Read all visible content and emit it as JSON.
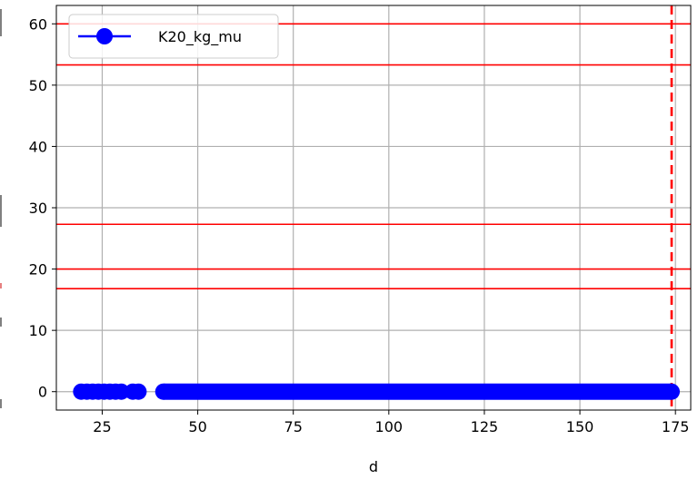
{
  "chart_data": {
    "type": "line",
    "xlabel": "d",
    "ylabel": "",
    "xlim": [
      13,
      179
    ],
    "ylim": [
      -3,
      63
    ],
    "x_ticks": [
      25,
      50,
      75,
      100,
      125,
      150,
      175
    ],
    "y_ticks": [
      0,
      10,
      20,
      30,
      40,
      50,
      60
    ],
    "grid": true,
    "legend": {
      "position": "top-left",
      "entries": [
        "K20_kg_mu"
      ]
    },
    "series": [
      {
        "name": "K20_kg_mu",
        "color": "#0000ff",
        "marker": "circle",
        "segments": [
          {
            "x": [
              19.5,
              21,
              22.5,
              24,
              25.5,
              27,
              28.5,
              30
            ],
            "y": [
              0,
              0,
              0,
              0,
              0,
              0,
              0,
              0
            ]
          },
          {
            "x": [
              33,
              34.5
            ],
            "y": [
              0,
              0
            ]
          },
          {
            "x_range": [
              41,
              174
            ],
            "y": 0
          }
        ]
      }
    ],
    "reference_lines": {
      "horizontal": [
        {
          "y": 60,
          "color": "#ff0000",
          "style": "solid"
        },
        {
          "y": 53.3,
          "color": "#ff0000",
          "style": "solid"
        },
        {
          "y": 27.3,
          "color": "#ff0000",
          "style": "solid"
        },
        {
          "y": 20,
          "color": "#ff0000",
          "style": "solid"
        },
        {
          "y": 16.8,
          "color": "#ff0000",
          "style": "solid"
        }
      ],
      "vertical": [
        {
          "x": 174,
          "color": "#ff0000",
          "style": "dashed"
        }
      ]
    }
  }
}
